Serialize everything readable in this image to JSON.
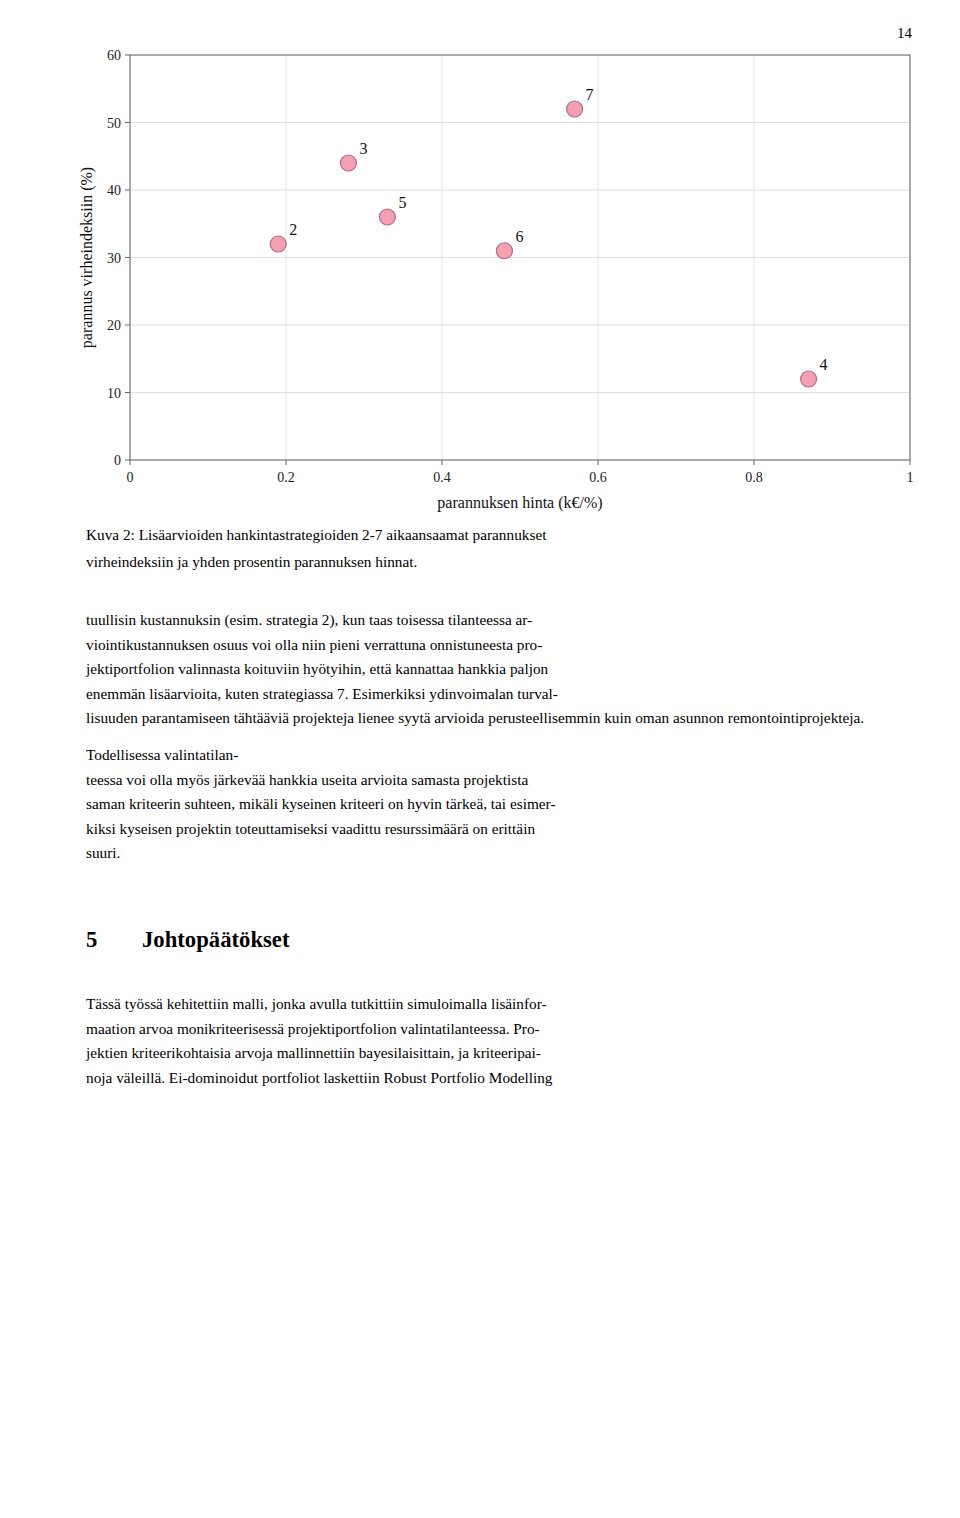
{
  "chart_data": {
    "type": "scatter",
    "x": [
      0.19,
      0.28,
      0.33,
      0.48,
      0.57,
      0.87
    ],
    "values": [
      32,
      44,
      36,
      31,
      52,
      12
    ],
    "labels": [
      "2",
      "3",
      "5",
      "6",
      "7",
      "4"
    ],
    "color": "#F4A0B0",
    "xlabel": "parannuksen hinta (k€/%)",
    "ylabel": "parannus virheindeksiin (%)",
    "xlim": [
      0,
      1
    ],
    "ylim": [
      0,
      60
    ],
    "xticks": [
      0,
      0.2,
      0.4,
      0.6,
      0.8,
      1
    ],
    "yticks": [
      0,
      10,
      20,
      30,
      40,
      50,
      60
    ],
    "grid": true
  },
  "page_number": "14",
  "caption": [
    "Kuva 2: Lisäarvioiden hankintastrategioiden 2-7 aikaansaamat parannukset",
    "virheindeksiin ja yhden prosentin parannuksen hinnat."
  ],
  "body1": [
    "tuullisin kustannuksin (esim. strategia 2), kun taas toisessa tilanteessa ar-",
    "viointikustannuksen osuus voi olla niin pieni verrattuna onnistuneesta pro-",
    "jektiportfolion valinnasta koituviin hyötyihin, että kannattaa hankkia paljon",
    "enemmän lisäarvioita, kuten strategiassa 7. Esimerkiksi ydinvoimalan turval-",
    "lisuuden parantamiseen tähtääviä projekteja lienee syytä arvioida perusteellisemmin kuin oman asunnon remontointiprojekteja."
  ],
  "body2": [
    "Todellisessa valintatilan-",
    "teessa voi olla myös järkevää hankkia useita arvioita samasta projektista",
    "saman kriteerin suhteen, mikäli kyseinen kriteeri on hyvin tärkeä, tai esimer-",
    "kiksi kyseisen projektin toteuttamiseksi vaadittu resurssimäärä on erittäin",
    "suuri."
  ],
  "section_number": "5",
  "section_title": "Johtopäätökset",
  "body3": [
    "Tässä työssä kehitettiin malli, jonka avulla tutkittiin simuloimalla lisäinfor-",
    "maation arvoa monikriteerisessä projektiportfolion valintatilanteessa. Pro-",
    "jektien kriteerikohtaisia arvoja mallinnettiin bayesilaisittain, ja kriteeripai-",
    "noja väleillä. Ei-dominoidut portfoliot laskettiin Robust Portfolio Modelling"
  ]
}
